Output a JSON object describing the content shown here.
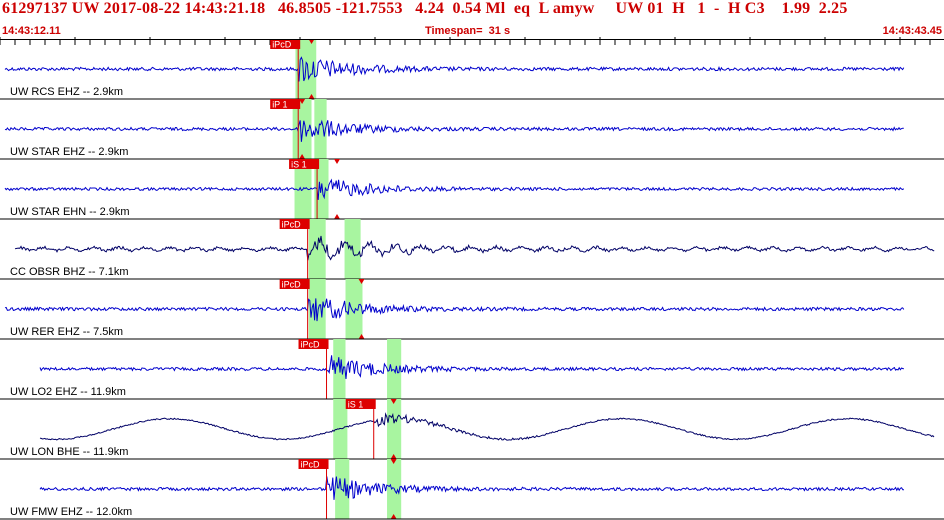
{
  "header": {
    "title": "61297137 UW 2017-08-22 14:43:21.18   46.8505 -121.7553   4.24  0.54 Ml  eq  L amyw     UW 01  H   1  -  H C3    1.99  2.25",
    "start_time": "14:43:12.11",
    "timespan": "Timespan=  31 s",
    "end_time": "14:43:43.45"
  },
  "colors": {
    "header_text": "#cc0000",
    "trace": "#0000cc",
    "trace_alt": "#000066",
    "pick": "#dd0000",
    "window": "#a8f5a0",
    "frame": "#000000",
    "label": "#000000"
  },
  "channels": [
    {
      "label": "UW RCS EHZ -- 2.9km",
      "trace_color": "#0000cc",
      "amplitude": 0.32,
      "picks": [
        {
          "text": "iPcD",
          "time": 0.3
        }
      ],
      "arrival_markers": [
        0.33
      ],
      "windows": [
        [
          0.313,
          0.335
        ]
      ]
    },
    {
      "label": "UW STAR EHZ -- 2.9km",
      "trace_color": "#0000cc",
      "amplitude": 0.3,
      "picks": [
        {
          "text": "iP  1",
          "time": 0.3
        }
      ],
      "arrival_markers": [
        0.32
      ],
      "windows": [
        [
          0.31,
          0.33
        ],
        [
          0.333,
          0.346
        ]
      ]
    },
    {
      "label": "UW STAR EHN -- 2.9km",
      "trace_color": "#0000cc",
      "amplitude": 0.28,
      "picks": [
        {
          "text": "iS  1",
          "time": 0.32
        }
      ],
      "arrival_markers": [
        0.357
      ],
      "windows": [
        [
          0.312,
          0.33
        ],
        [
          0.333,
          0.348
        ]
      ]
    },
    {
      "label": "CC OBSR BHZ -- 7.1km",
      "trace_color": "#000066",
      "amplitude": 0.35,
      "picks": [
        {
          "text": "iPcD",
          "time": 0.31
        }
      ],
      "arrival_markers": [],
      "windows": [
        [
          0.327,
          0.345
        ],
        [
          0.365,
          0.382
        ]
      ]
    },
    {
      "label": "UW RER EHZ -- 7.5km",
      "trace_color": "#0000cc",
      "amplitude": 0.32,
      "picks": [
        {
          "text": "iPcD",
          "time": 0.31
        }
      ],
      "arrival_markers": [
        0.383
      ],
      "windows": [
        [
          0.327,
          0.345
        ],
        [
          0.366,
          0.384
        ]
      ]
    },
    {
      "label": "UW LO2 EHZ -- 11.9km",
      "trace_color": "#0000cc",
      "amplitude": 0.3,
      "picks": [
        {
          "text": "iPcD",
          "time": 0.33
        }
      ],
      "arrival_markers": [],
      "windows": [
        [
          0.353,
          0.366
        ],
        [
          0.41,
          0.425
        ]
      ]
    },
    {
      "label": "UW LON BHE -- 11.9km",
      "trace_color": "#000066",
      "amplitude": 0.38,
      "picks": [
        {
          "text": "iS  1",
          "time": 0.38
        }
      ],
      "arrival_markers": [
        0.417
      ],
      "windows": [
        [
          0.353,
          0.368
        ],
        [
          0.41,
          0.425
        ]
      ]
    },
    {
      "label": "UW FMW EHZ -- 12.0km",
      "trace_color": "#0000cc",
      "amplitude": 0.3,
      "picks": [
        {
          "text": "iPcD",
          "time": 0.33
        }
      ],
      "arrival_markers": [
        0.417
      ],
      "windows": [
        [
          0.355,
          0.37
        ],
        [
          0.41,
          0.425
        ]
      ]
    }
  ]
}
